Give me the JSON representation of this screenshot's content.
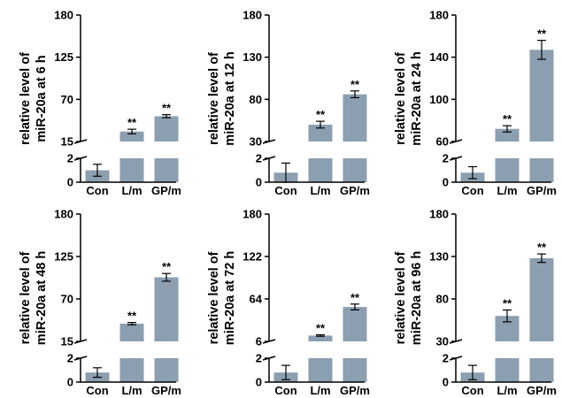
{
  "colors": {
    "bar": "#8c9fb0",
    "axis": "#000000",
    "background": "#ffffff"
  },
  "chart_data": [
    {
      "type": "bar",
      "broken_axis": true,
      "ylabel_lines": [
        "relative level of",
        "miR-20a at 6 h"
      ],
      "categories": [
        "Con",
        "L/m",
        "GP/m"
      ],
      "values": [
        1.0,
        28,
        48
      ],
      "errors": [
        0.5,
        3,
        2
      ],
      "significance": [
        "",
        "**",
        "**"
      ],
      "lower_range": [
        0,
        2
      ],
      "lower_ticks": [
        0,
        2
      ],
      "upper_range": [
        15,
        180
      ],
      "upper_ticks": [
        15,
        70,
        125,
        180
      ]
    },
    {
      "type": "bar",
      "broken_axis": true,
      "ylabel_lines": [
        "relative level of",
        "miR-20a at 12 h"
      ],
      "categories": [
        "Con",
        "L/m",
        "GP/m"
      ],
      "values": [
        0.8,
        50,
        86
      ],
      "errors": [
        0.8,
        4,
        4
      ],
      "significance": [
        "",
        "**",
        "**"
      ],
      "lower_range": [
        0,
        2
      ],
      "lower_ticks": [
        0,
        2
      ],
      "upper_range": [
        30,
        180
      ],
      "upper_ticks": [
        30,
        80,
        130,
        180
      ]
    },
    {
      "type": "bar",
      "broken_axis": true,
      "ylabel_lines": [
        "relative level of",
        "miR-20a at 24 h"
      ],
      "categories": [
        "Con",
        "L/m",
        "GP/m"
      ],
      "values": [
        0.8,
        72,
        147
      ],
      "errors": [
        0.5,
        3,
        9
      ],
      "significance": [
        "",
        "**",
        "**"
      ],
      "lower_range": [
        0,
        2
      ],
      "lower_ticks": [
        0,
        2
      ],
      "upper_range": [
        60,
        180
      ],
      "upper_ticks": [
        60,
        100,
        140,
        180
      ]
    },
    {
      "type": "bar",
      "broken_axis": true,
      "ylabel_lines": [
        "relative level of",
        "miR-20a at 48 h"
      ],
      "categories": [
        "Con",
        "L/m",
        "GP/m"
      ],
      "values": [
        0.8,
        38,
        98
      ],
      "errors": [
        0.4,
        1.5,
        5
      ],
      "significance": [
        "",
        "**",
        "**"
      ],
      "lower_range": [
        0,
        2
      ],
      "lower_ticks": [
        0,
        2
      ],
      "upper_range": [
        15,
        180
      ],
      "upper_ticks": [
        15,
        70,
        125,
        180
      ]
    },
    {
      "type": "bar",
      "broken_axis": true,
      "ylabel_lines": [
        "relative level of",
        "miR-20a at 72 h"
      ],
      "categories": [
        "Con",
        "L/m",
        "GP/m"
      ],
      "values": [
        0.8,
        14,
        53
      ],
      "errors": [
        0.6,
        1,
        4
      ],
      "significance": [
        "",
        "**",
        "**"
      ],
      "lower_range": [
        0,
        2
      ],
      "lower_ticks": [
        0,
        2
      ],
      "upper_range": [
        6,
        180
      ],
      "upper_ticks": [
        6,
        64,
        122,
        180
      ]
    },
    {
      "type": "bar",
      "broken_axis": true,
      "ylabel_lines": [
        "relative level of",
        "miR-20a at 96 h"
      ],
      "categories": [
        "Con",
        "L/m",
        "GP/m"
      ],
      "values": [
        0.8,
        60,
        128
      ],
      "errors": [
        0.6,
        7,
        5
      ],
      "significance": [
        "",
        "**",
        "**"
      ],
      "lower_range": [
        0,
        2
      ],
      "lower_ticks": [
        0,
        2
      ],
      "upper_range": [
        30,
        180
      ],
      "upper_ticks": [
        30,
        80,
        130,
        180
      ]
    }
  ]
}
